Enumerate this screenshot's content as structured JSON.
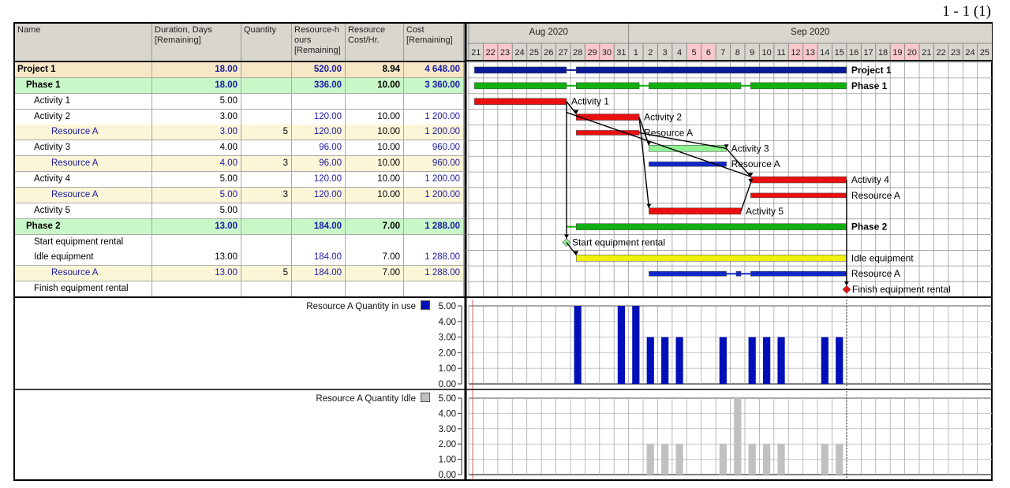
{
  "page_label": "1 - 1 (1)",
  "columns": [
    {
      "key": "name",
      "label": "Name"
    },
    {
      "key": "duration",
      "label": "Duration, Days [Remaining]"
    },
    {
      "key": "quantity",
      "label": "Quantity"
    },
    {
      "key": "res_hours",
      "label": "Resource-h ours [Remaining]"
    },
    {
      "key": "res_cost",
      "label": "Resource Cost/Hr."
    },
    {
      "key": "cost",
      "label": "Cost [Remaining]"
    }
  ],
  "rows": [
    {
      "name": "Project 1",
      "type": "project",
      "duration": "18.00",
      "quantity": "",
      "res_hours": "520.00",
      "res_cost": "8.94",
      "cost": "4 648.00",
      "bar": {
        "color": "#0a1a9a",
        "segments": [
          [
            "Aug 21",
            "Aug 27"
          ],
          [
            "Aug 28",
            "Sep 15"
          ]
        ],
        "label": "Project 1"
      }
    },
    {
      "name": "Phase 1",
      "type": "phase",
      "duration": "18.00",
      "quantity": "",
      "res_hours": "336.00",
      "res_cost": "10.00",
      "cost": "3 360.00",
      "bar": {
        "color": "#10b010",
        "segments": [
          [
            "Aug 21",
            "Aug 27"
          ],
          [
            "Aug 28",
            "Sep 1"
          ],
          [
            "Sep 2",
            "Sep 8"
          ],
          [
            "Sep 9",
            "Sep 15"
          ]
        ],
        "label": "Phase 1"
      }
    },
    {
      "name": "Activity 1",
      "type": "activity",
      "duration": "5.00",
      "quantity": "",
      "res_hours": "",
      "res_cost": "",
      "cost": "",
      "bar": {
        "color": "#e81010",
        "segments": [
          [
            "Aug 21",
            "Aug 27"
          ]
        ],
        "label": "Activity 1"
      }
    },
    {
      "name": "Activity 2",
      "type": "activity",
      "duration": "3.00",
      "quantity": "",
      "res_hours": "120.00",
      "res_cost": "10.00",
      "cost": "1 200.00",
      "bar": {
        "color": "#e81010",
        "segments": [
          [
            "Aug 28",
            "Sep 1"
          ]
        ],
        "label": "Activity 2"
      }
    },
    {
      "name": "Resource A",
      "type": "resource",
      "duration": "3.00",
      "quantity": "5",
      "res_hours": "120.00",
      "res_cost": "10.00",
      "cost": "1 200.00",
      "bar": {
        "color": "#e81010",
        "thin": true,
        "segments": [
          [
            "Aug 28",
            "Sep 1"
          ]
        ],
        "label": "Resource A"
      }
    },
    {
      "name": "Activity 3",
      "type": "activity",
      "duration": "4.00",
      "quantity": "",
      "res_hours": "96.00",
      "res_cost": "10.00",
      "cost": "960.00",
      "bar": {
        "color": "#90f090",
        "segments": [
          [
            "Sep 2",
            "Sep 7"
          ]
        ],
        "label": "Activity 3"
      }
    },
    {
      "name": "Resource A",
      "type": "resource",
      "duration": "4.00",
      "quantity": "3",
      "res_hours": "96.00",
      "res_cost": "10.00",
      "cost": "960.00",
      "bar": {
        "color": "#1028c8",
        "thin": true,
        "segments": [
          [
            "Sep 2",
            "Sep 7"
          ]
        ],
        "label": "Resource A"
      }
    },
    {
      "name": "Activity 4",
      "type": "activity",
      "duration": "5.00",
      "quantity": "",
      "res_hours": "120.00",
      "res_cost": "10.00",
      "cost": "1 200.00",
      "bar": {
        "color": "#e81010",
        "segments": [
          [
            "Sep 9",
            "Sep 15"
          ]
        ],
        "label": "Activity 4"
      }
    },
    {
      "name": "Resource A",
      "type": "resource",
      "duration": "5.00",
      "quantity": "3",
      "res_hours": "120.00",
      "res_cost": "10.00",
      "cost": "1 200.00",
      "bar": {
        "color": "#e81010",
        "thin": true,
        "segments": [
          [
            "Sep 9",
            "Sep 15"
          ]
        ],
        "label": "Resource A"
      }
    },
    {
      "name": "Activity 5",
      "type": "activity",
      "duration": "5.00",
      "quantity": "",
      "res_hours": "",
      "res_cost": "",
      "cost": "",
      "bar": {
        "color": "#e81010",
        "segments": [
          [
            "Sep 2",
            "Sep 8"
          ]
        ],
        "label": "Activity 5"
      }
    },
    {
      "name": "Phase 2",
      "type": "phase",
      "duration": "13.00",
      "quantity": "",
      "res_hours": "184.00",
      "res_cost": "7.00",
      "cost": "1 288.00",
      "bar": {
        "color": "#10b010",
        "segments": [
          [
            "Aug 28",
            "Sep 15"
          ]
        ],
        "label": "Phase 2"
      }
    },
    {
      "name": "Start equipment rental",
      "type": "activity",
      "duration": "",
      "quantity": "",
      "res_hours": "",
      "res_cost": "",
      "cost": "",
      "milestone": {
        "date": "Aug 27",
        "color": "#90f090",
        "label": "Start equipment rental"
      }
    },
    {
      "name": "Idle equipment",
      "type": "activity",
      "duration": "13.00",
      "quantity": "",
      "res_hours": "184.00",
      "res_cost": "7.00",
      "cost": "1 288.00",
      "bar": {
        "color": "#f0f010",
        "segments": [
          [
            "Aug 28",
            "Sep 15"
          ]
        ],
        "label": "Idle equipment"
      }
    },
    {
      "name": "Resource A",
      "type": "resource",
      "duration": "13.00",
      "quantity": "5",
      "res_hours": "184.00",
      "res_cost": "7.00",
      "cost": "1 288.00",
      "bar": {
        "color": "#1028c8",
        "thin": true,
        "segments": [
          [
            "Sep 2",
            "Sep 7"
          ],
          [
            "Sep 8",
            "Sep 8"
          ],
          [
            "Sep 9",
            "Sep 15"
          ]
        ],
        "label": "Resource A"
      }
    },
    {
      "name": "Finish equipment rental",
      "type": "activity",
      "duration": "",
      "quantity": "",
      "res_hours": "",
      "res_cost": "",
      "cost": "",
      "milestone": {
        "date": "Sep 15",
        "color": "#e81010",
        "label": "Finish equipment rental"
      }
    }
  ],
  "timeline": {
    "months": [
      {
        "label": "Aug 2020",
        "from": "Aug 21",
        "to": "Aug 31"
      },
      {
        "label": "Sep 2020",
        "from": "Sep 1",
        "to": "Sep 25"
      }
    ],
    "days": [
      "21",
      "22",
      "23",
      "24",
      "25",
      "26",
      "27",
      "28",
      "29",
      "30",
      "31",
      "1",
      "2",
      "3",
      "4",
      "5",
      "6",
      "7",
      "8",
      "9",
      "10",
      "11",
      "12",
      "13",
      "14",
      "15",
      "16",
      "17",
      "18",
      "19",
      "20",
      "21",
      "22",
      "23",
      "24",
      "25"
    ],
    "weekends": [
      "Aug 22",
      "Aug 23",
      "Aug 29",
      "Aug 30",
      "Sep 5",
      "Sep 6",
      "Sep 12",
      "Sep 13",
      "Sep 19",
      "Sep 20"
    ],
    "weekend_color": "#f8c8cc"
  },
  "chart_data": [
    {
      "type": "bar",
      "series": [
        {
          "name": "Resource A Quantity in use",
          "color": "#0010b8",
          "values": {
            "Aug 28": 5,
            "Aug 31": 5,
            "Sep 1": 5,
            "Sep 2": 3,
            "Sep 3": 3,
            "Sep 4": 3,
            "Sep 7": 3,
            "Sep 9": 3,
            "Sep 10": 3,
            "Sep 11": 3,
            "Sep 14": 3,
            "Sep 15": 3
          }
        }
      ],
      "yticks": [
        "5.00",
        "4.00",
        "3.00",
        "2.00",
        "1.00",
        "0.00"
      ],
      "ylim": [
        0,
        5
      ]
    },
    {
      "type": "bar",
      "series": [
        {
          "name": "Resource A Quantity Idle",
          "color": "#c0c0c0",
          "values": {
            "Sep 2": 2,
            "Sep 3": 2,
            "Sep 4": 2,
            "Sep 7": 2,
            "Sep 8": 5,
            "Sep 9": 2,
            "Sep 10": 2,
            "Sep 11": 2,
            "Sep 14": 2,
            "Sep 15": 2
          }
        }
      ],
      "yticks": [
        "5.00",
        "4.00",
        "3.00",
        "2.00",
        "1.00",
        "0.00"
      ],
      "ylim": [
        0,
        5
      ]
    }
  ]
}
